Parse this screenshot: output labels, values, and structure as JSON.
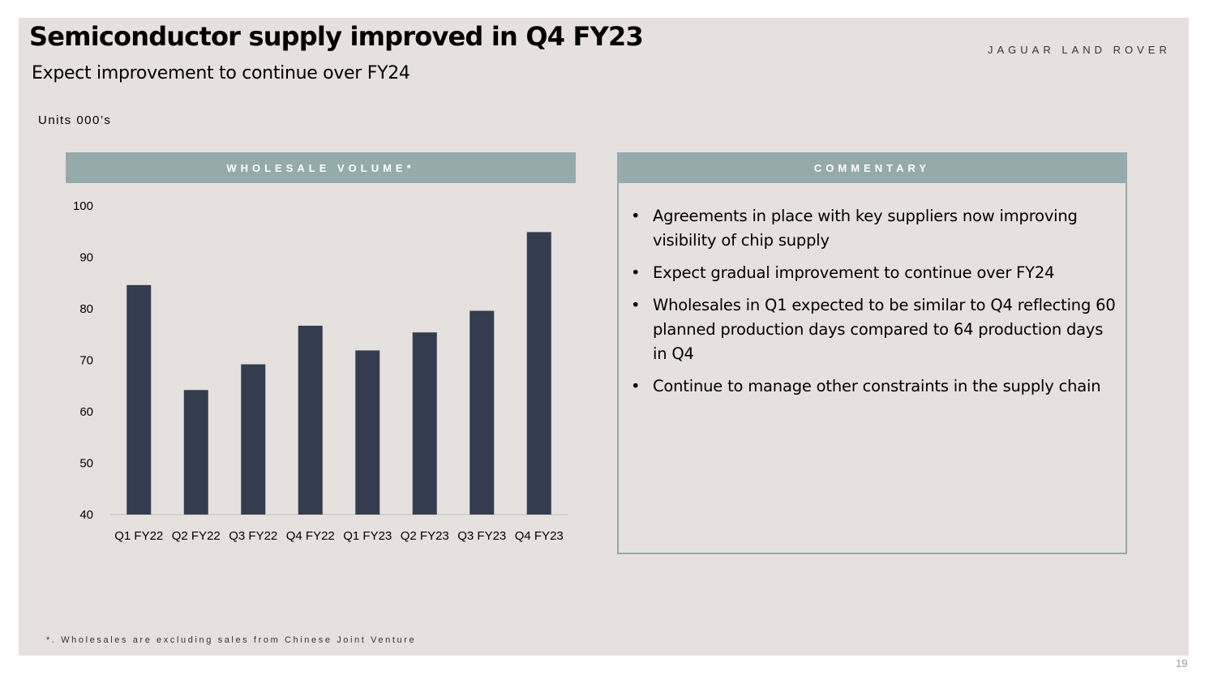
{
  "slide": {
    "title": "Semiconductor supply improved in Q4 FY23",
    "subtitle": "Expect improvement to continue over FY24",
    "brand": "JAGUAR LAND ROVER",
    "units_label": "Units 000’s",
    "footnote": "*. Wholesales are excluding sales from Chinese Joint Venture",
    "page_number": "19"
  },
  "chart_panel": {
    "header": "WHOLESALE VOLUME*"
  },
  "commentary": {
    "header": "COMMENTARY",
    "items": [
      "Agreements in place with key suppliers now improving visibility of chip supply",
      "Expect gradual improvement to continue over FY24",
      "Wholesales in Q1 expected to be similar to Q4 reflecting 60 planned production days compared to 64 production days in Q4",
      "Continue to manage other constraints in the supply chain"
    ]
  },
  "chart_data": {
    "type": "bar",
    "categories": [
      "Q1 FY22",
      "Q2 FY22",
      "Q3 FY22",
      "Q4 FY22",
      "Q1 FY23",
      "Q2 FY23",
      "Q3 FY23",
      "Q4 FY23"
    ],
    "values": [
      84.6,
      64.2,
      69.2,
      76.7,
      71.9,
      75.4,
      79.6,
      94.9
    ],
    "ylim": [
      40,
      100
    ],
    "yticks": [
      40,
      50,
      60,
      70,
      80,
      90,
      100
    ],
    "grid": false,
    "bar_color": "#333d4f",
    "title": "",
    "xlabel": "",
    "ylabel": ""
  }
}
